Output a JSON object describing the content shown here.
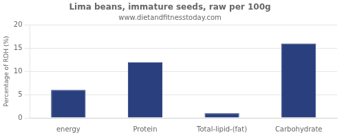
{
  "chart_data": {
    "type": "bar",
    "title": "Lima beans, immature seeds, raw per 100g",
    "subtitle": "www.dietandfitnesstoday.com",
    "categories": [
      "energy",
      "Protein",
      "Total-lipid-(fat)",
      "Carbohydrate"
    ],
    "values": [
      6.0,
      12.0,
      1.0,
      16.0
    ],
    "color": "#2a3f7e",
    "ylabel": "Percentage of RDH (%)",
    "ylim": [
      0,
      20
    ],
    "yticks": [
      0,
      5,
      10,
      15,
      20
    ],
    "grid": true
  }
}
